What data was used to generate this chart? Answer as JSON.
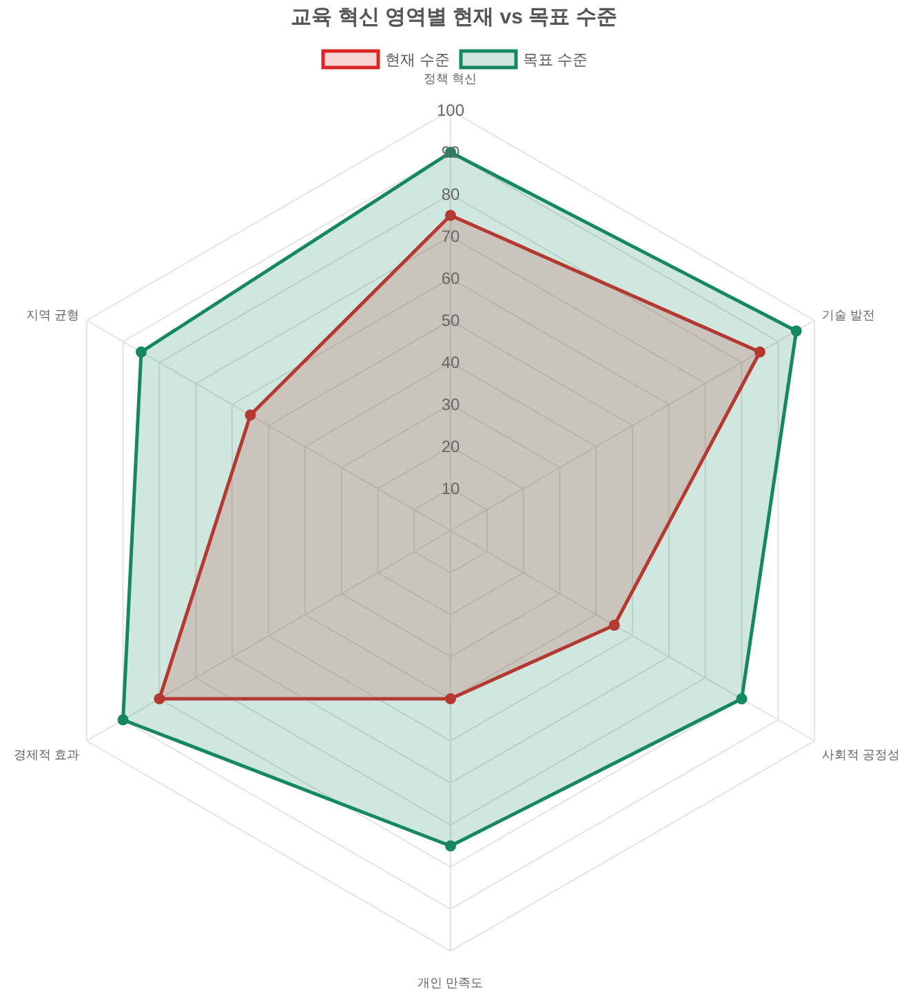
{
  "chart_data": {
    "type": "radar",
    "title": "교육 혁신 영역별 현재 vs 목표 수준",
    "categories": [
      "정책 혁신",
      "기술 발전",
      "사회적 공정성",
      "개인 만족도",
      "경제적 효과",
      "지역 균형"
    ],
    "series": [
      {
        "name": "현재 수준",
        "color": "#dc2626",
        "values": [
          75,
          85,
          45,
          40,
          80,
          55
        ]
      },
      {
        "name": "목표 수준",
        "color": "#15885f",
        "values": [
          90,
          95,
          80,
          75,
          90,
          85
        ]
      }
    ],
    "ylim": [
      0,
      100
    ],
    "yticks": [
      10,
      20,
      30,
      40,
      50,
      60,
      70,
      80,
      90,
      100
    ],
    "grid": true,
    "legend": "top",
    "marker": "circle"
  }
}
